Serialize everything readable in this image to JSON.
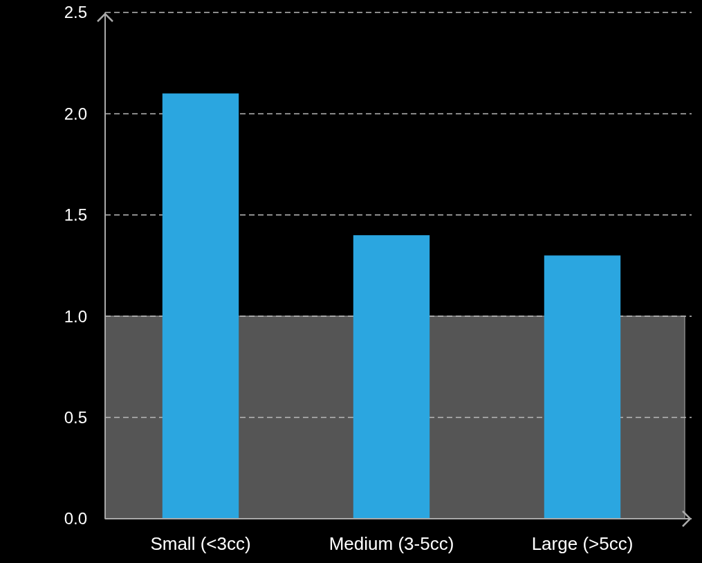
{
  "chart_data": {
    "type": "bar",
    "categories": [
      "Small (<3cc)",
      "Medium (3-5cc)",
      "Large (>5cc)"
    ],
    "values": [
      2.1,
      1.4,
      1.3
    ],
    "color": "#2ba6e0",
    "ylim": [
      0,
      2.5
    ],
    "yticks": [
      {
        "value": 0,
        "label": "0.0"
      },
      {
        "value": 0.5,
        "label": "0.5"
      },
      {
        "value": 1,
        "label": "1.0"
      },
      {
        "value": 1.5,
        "label": "1.5"
      },
      {
        "value": 2,
        "label": "2.0"
      },
      {
        "value": 2.5,
        "label": "2.5"
      }
    ],
    "grid": "y",
    "bands": [
      {
        "axis": "y",
        "from": 0,
        "to": 1,
        "color": "#555555"
      }
    ]
  }
}
